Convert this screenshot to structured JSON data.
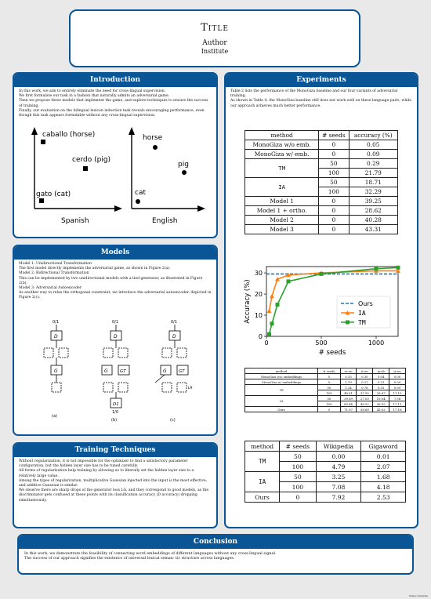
{
  "poster": {
    "title": "Title",
    "author": "Author",
    "institute": "Institute"
  },
  "introduction": {
    "heading": "Introduction",
    "lines": [
      "In this work, we aim to entirely eliminate the need for cross-lingual supervision.",
      "We first formulate our task in a fashion that naturally admits an adversarial game.",
      "Then we propose three models that implement the game, and explore techniques to ensure the success of training.",
      "Finally, our evaluation on the bilingual lexicon induction task reveals encouraging performance, even though this task appears formidable without any cross-lingual supervision."
    ],
    "figure": {
      "left_label": "Spanish",
      "right_label": "English",
      "left_words": [
        "caballo (horse)",
        "cerdo (pig)",
        "gato (cat)"
      ],
      "right_words": [
        "horse",
        "pig",
        "cat"
      ]
    }
  },
  "models": {
    "heading": "Models",
    "lines": [
      "Model 1: Unidirectional Transformation",
      "The first model directly implements the adversarial game, as shown in Figure 2(a).",
      "Model 2: Bidirectional Transformation",
      "This can be implemented by two unidirectional models with a tied generator, as illustrated in Figure 2(b).",
      "Model 3: Adversarial Autoencoder",
      "As another way to relax the orthogonal constraint, we introduce the adversarial autoencoder, depicted in Figure 2(c)."
    ],
    "figure": {
      "top_label": "0/1",
      "bottom_label": "1/0",
      "d_label": "D",
      "g_label": "G",
      "gt_label": "GT",
      "d1_label": "D1",
      "ld_label": "LR",
      "captions": [
        "(a)",
        "(b)",
        "(c)"
      ]
    }
  },
  "training": {
    "heading": "Training Techniques",
    "lines": [
      "Without regularization, it is not impossible for the optimizer to find a satisfactory parameter configuration, but the hidden layer size has to be tuned carefully.",
      "All forms of regularization help training by allowing us to liberally set the hidden layer size to a relatively large value.",
      "Among the types of regularization, multiplicative Gaussian injected into the input is the most effective, and additive Gaussian is similar.",
      "We observe there are sharp drops of the generator loss LG, and they correspond to good models, as the discriminator gets confused at these points with its classification accuracy (D accuracy) dropping simultaneously."
    ]
  },
  "experiments": {
    "heading": "Experiments",
    "lines": [
      "Table 2 lists the performance of the MonoGiza baseline and our four variants of adversarial training.",
      "As shown in Table 4, the MonoGiza baseline still does not work well on these language pairs, while our approach achieves much better performance."
    ],
    "table2": {
      "headers": [
        "method",
        "# seeds",
        "accuracy (%)"
      ],
      "rows": [
        [
          "MonoGiza w/o emb.",
          "0",
          "0.05"
        ],
        [
          "MonoGiza w/ emb.",
          "0",
          "0.09"
        ],
        [
          "TM",
          "50",
          "0.29"
        ],
        [
          "",
          "100",
          "21.79"
        ],
        [
          "IA",
          "50",
          "18.71"
        ],
        [
          "",
          "100",
          "32.29"
        ],
        [
          "Model 1",
          "0",
          "39.25"
        ],
        [
          "Model 1 + ortho.",
          "0",
          "28.62"
        ],
        [
          "Model 2",
          "0",
          "40.28"
        ],
        [
          "Model 3",
          "0",
          "43.31"
        ]
      ]
    },
    "table4": {
      "headers": [
        "method",
        "# seeds",
        "es-en",
        "it-en",
        "ja-zh",
        "tr-en"
      ],
      "rows": [
        [
          "MonoGiza w/o embeddings",
          "0",
          "0.35",
          "0.30",
          "0.04",
          "0.00"
        ],
        [
          "MonoGiza w/ embeddings",
          "0",
          "1.19",
          "0.27",
          "0.23",
          "0.09"
        ],
        [
          "TM",
          "50",
          "1.24",
          "0.76",
          "0.35",
          "0.09"
        ],
        [
          "",
          "100",
          "48.61",
          "37.95",
          "26.67",
          "11.15"
        ],
        [
          "IA",
          "50",
          "39.89",
          "27.03",
          "19.04",
          "7.58"
        ],
        [
          "",
          "100",
          "60.44",
          "46.52",
          "36.35",
          "17.11"
        ],
        [
          "Ours",
          "0",
          "71.97",
          "58.60",
          "43.02",
          "17.18"
        ]
      ]
    },
    "table5": {
      "headers": [
        "method",
        "# seeds",
        "Wikipedia",
        "Gigaword"
      ],
      "rows": [
        [
          "TM",
          "50",
          "0.00",
          "0.01"
        ],
        [
          "",
          "100",
          "4.79",
          "2.07"
        ],
        [
          "IA",
          "50",
          "3.25",
          "1.68"
        ],
        [
          "",
          "100",
          "7.08",
          "4.18"
        ],
        [
          "Ours",
          "0",
          "7.92",
          "2.53"
        ]
      ]
    }
  },
  "chart_data": {
    "type": "line",
    "xlabel": "# seeds",
    "ylabel": "Accuracy (%)",
    "xlim": [
      0,
      1200
    ],
    "ylim": [
      0,
      33
    ],
    "xticks": [
      0,
      500,
      1000
    ],
    "yticks": [
      0,
      10,
      20,
      30
    ],
    "legend_position": "right",
    "series": [
      {
        "name": "Ours",
        "style": "dashed",
        "color": "#1f77b4",
        "x": [
          0,
          1200
        ],
        "y": [
          29.5,
          29.5
        ]
      },
      {
        "name": "IA",
        "style": "triangle",
        "color": "#ff7f0e",
        "x": [
          25,
          50,
          100,
          200,
          500,
          1000,
          1200
        ],
        "y": [
          12,
          19,
          27,
          29,
          30,
          31,
          31
        ]
      },
      {
        "name": "TM",
        "style": "square",
        "color": "#2ca02c",
        "x": [
          25,
          50,
          100,
          200,
          500,
          1000,
          1200
        ],
        "y": [
          1,
          6,
          15,
          26,
          29.5,
          32,
          32.5
        ]
      }
    ]
  },
  "conclusion": {
    "heading": "Conclusion",
    "lines": [
      "In this work, we demonstrate the feasibility of connecting word embeddings of different languages without any cross-lingual signal.",
      "The success of our approach signifies the existence of universal lexical seman- tic structure across languages."
    ]
  },
  "footer": "Poster template"
}
